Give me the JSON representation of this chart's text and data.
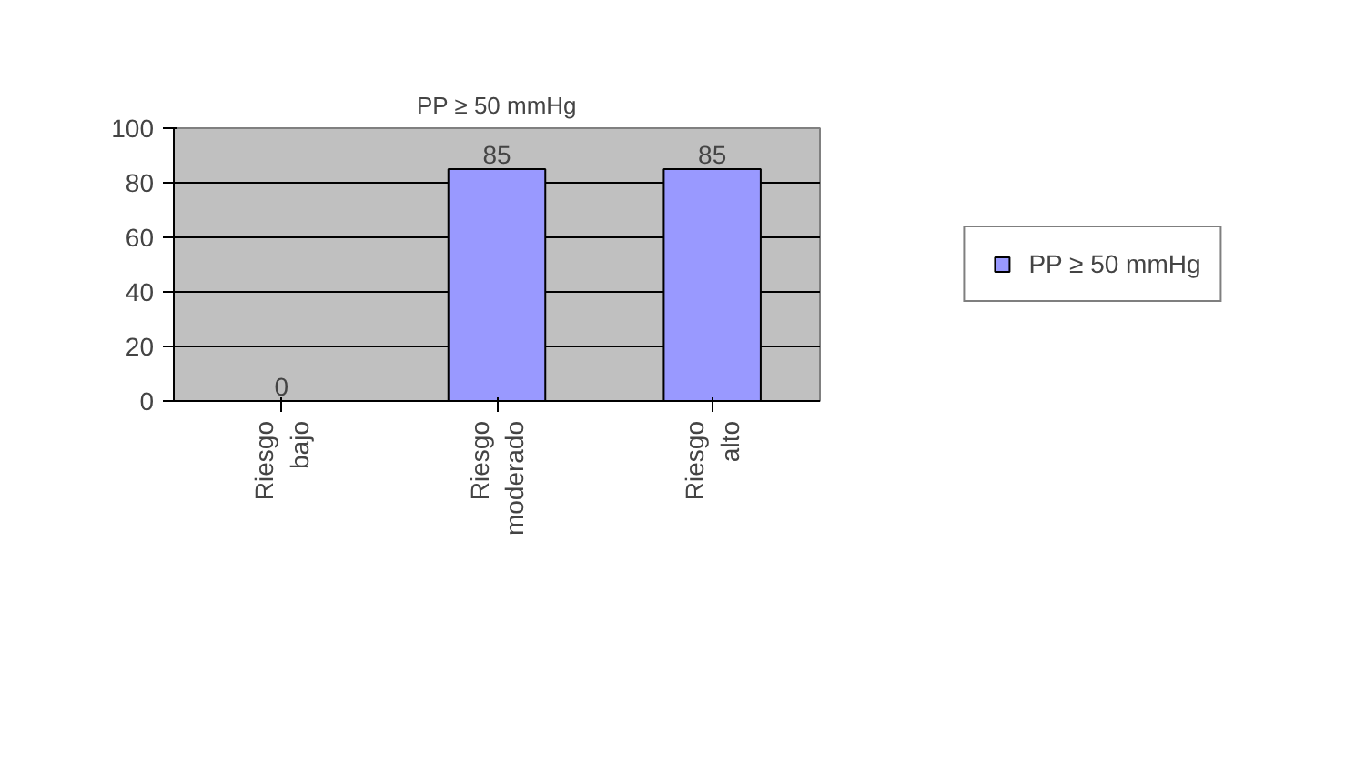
{
  "chart_data": {
    "type": "bar",
    "title": "PP ≥ 50 mmHg",
    "categories": [
      "Riesgo bajo",
      "Riesgo moderado",
      "Riesgo alto"
    ],
    "series": [
      {
        "name": "PP ≥ 50 mmHg",
        "color": "#9999ff",
        "values": [
          0,
          85,
          85
        ]
      }
    ],
    "ylim": [
      0,
      100
    ],
    "yticks": [
      0,
      20,
      40,
      60,
      80,
      100
    ],
    "grid": "y",
    "legend": "right",
    "data_labels": true
  }
}
